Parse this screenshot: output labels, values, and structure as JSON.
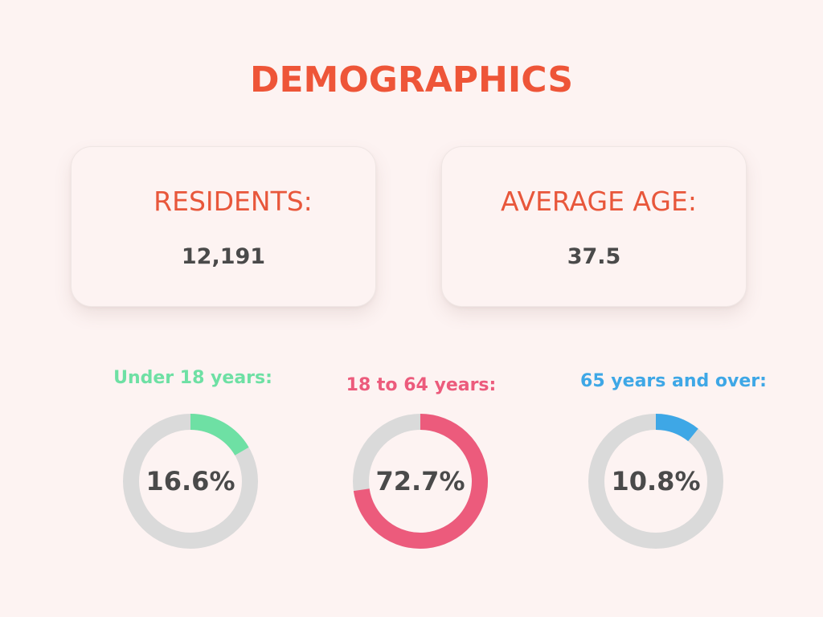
{
  "page": {
    "title": "DEMOGRAPHICS"
  },
  "colors": {
    "title": "#ee5538",
    "stat_label": "#e8573b",
    "stat_value": "#4a4a4a",
    "track": "#dadada",
    "under_18": "#6ee0a4",
    "age_18_64": "#ec5b7c",
    "over_65": "#3ea7e6",
    "background": "#fdf3f2"
  },
  "stats": {
    "residents": {
      "label": "RESIDENTS:",
      "value": "12,191"
    },
    "average_age": {
      "label": "AVERAGE AGE:",
      "value": "37.5"
    }
  },
  "chart_data": {
    "type": "pie",
    "variant": "donut",
    "series": [
      {
        "name": "Under 18 years:",
        "value": 16.6,
        "display": "16.6%",
        "color": "#6ee0a4"
      },
      {
        "name": "18 to 64 years:",
        "value": 72.7,
        "display": "72.7%",
        "color": "#ec5b7c"
      },
      {
        "name": "65 years and over:",
        "value": 10.8,
        "display": "10.8%",
        "color": "#3ea7e6"
      }
    ]
  }
}
